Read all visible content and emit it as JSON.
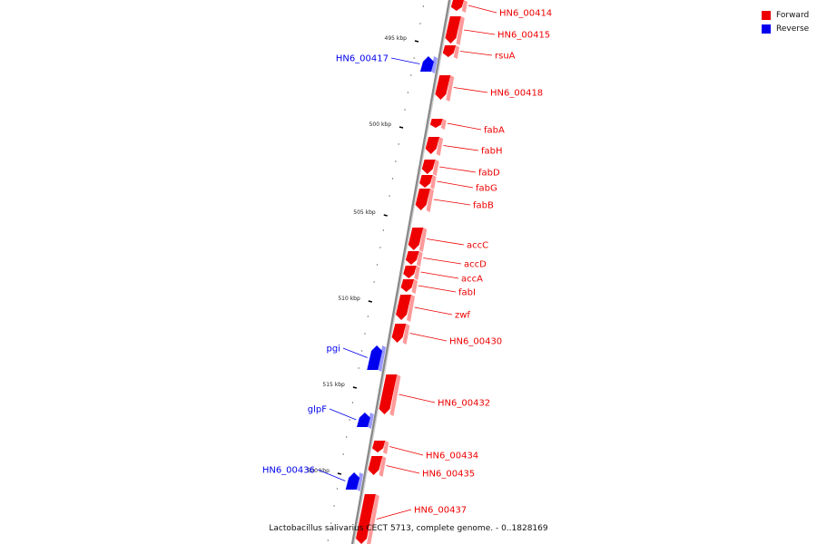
{
  "colors": {
    "forward": "#ee0000",
    "reverse": "#0000ee",
    "backbone": "#888888"
  },
  "legend": [
    {
      "label": "Forward",
      "color": "#ee0000"
    },
    {
      "label": "Reverse",
      "color": "#0000ee"
    }
  ],
  "caption": "Lactobacillus salivarius CECT 5713, complete genome. - 0..1828169",
  "ticks": [
    "495 kbp",
    "500 kbp",
    "505 kbp",
    "510 kbp",
    "515 kbp",
    "520 kbp"
  ],
  "genes": [
    {
      "name": "HN6_00414",
      "strand": "forward"
    },
    {
      "name": "HN6_00415",
      "strand": "forward"
    },
    {
      "name": "rsuA",
      "strand": "forward"
    },
    {
      "name": "HN6_00417",
      "strand": "reverse"
    },
    {
      "name": "HN6_00418",
      "strand": "forward"
    },
    {
      "name": "fabA",
      "strand": "forward"
    },
    {
      "name": "fabH",
      "strand": "forward"
    },
    {
      "name": "fabD",
      "strand": "forward"
    },
    {
      "name": "fabG",
      "strand": "forward"
    },
    {
      "name": "fabB",
      "strand": "forward"
    },
    {
      "name": "accC",
      "strand": "forward"
    },
    {
      "name": "accD",
      "strand": "forward"
    },
    {
      "name": "accA",
      "strand": "forward"
    },
    {
      "name": "fabI",
      "strand": "forward"
    },
    {
      "name": "zwf",
      "strand": "forward"
    },
    {
      "name": "HN6_00430",
      "strand": "forward"
    },
    {
      "name": "pgi",
      "strand": "reverse"
    },
    {
      "name": "HN6_00432",
      "strand": "forward"
    },
    {
      "name": "glpF",
      "strand": "reverse"
    },
    {
      "name": "HN6_00434",
      "strand": "forward"
    },
    {
      "name": "HN6_00435",
      "strand": "forward"
    },
    {
      "name": "HN6_00436",
      "strand": "reverse"
    },
    {
      "name": "HN6_00437",
      "strand": "forward"
    }
  ]
}
